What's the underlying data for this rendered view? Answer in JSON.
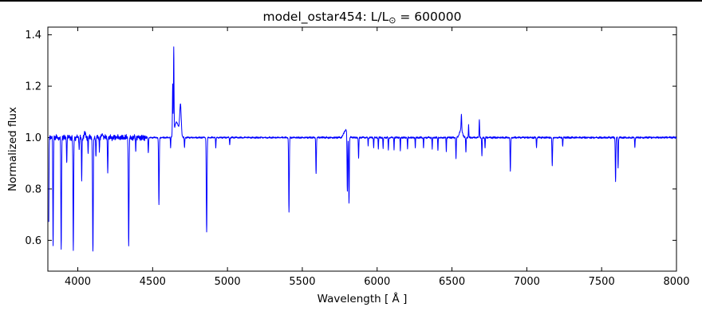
{
  "figure": {
    "background": "#ffffff"
  },
  "chart_data": {
    "type": "line",
    "title": "model_ostar454: L/L⊙ = 600000",
    "title_parts": {
      "prefix": "model_ostar454: L/L",
      "sub": "⊙",
      "suffix": " = 600000"
    },
    "xlabel": "Wavelength [ Å ]",
    "ylabel": "Normalized flux",
    "xlim": [
      3800,
      8000
    ],
    "ylim": [
      0.48,
      1.43
    ],
    "x_start": 3806,
    "sample_step": 1,
    "grid": false,
    "legend": "none",
    "line_color": "#0000ff",
    "frame_color": "#000000",
    "tick_direction": "in",
    "tick_length": 5,
    "xticks": [
      {
        "v": 4000,
        "label": "4000"
      },
      {
        "v": 4500,
        "label": "4500"
      },
      {
        "v": 5000,
        "label": "5000"
      },
      {
        "v": 5500,
        "label": "5500"
      },
      {
        "v": 6000,
        "label": "6000"
      },
      {
        "v": 6500,
        "label": "6500"
      },
      {
        "v": 7000,
        "label": "7000"
      },
      {
        "v": 7500,
        "label": "7500"
      },
      {
        "v": 8000,
        "label": "8000"
      }
    ],
    "yticks": [
      {
        "v": 0.6,
        "label": "0.6"
      },
      {
        "v": 0.8,
        "label": "0.8"
      },
      {
        "v": 1.0,
        "label": "1.0"
      },
      {
        "v": 1.2,
        "label": "1.2"
      },
      {
        "v": 1.4,
        "label": "1.4"
      }
    ],
    "continuum": 1.0,
    "features": [
      {
        "wl": 3805,
        "flux": 0.62,
        "w": 2.0
      },
      {
        "wl": 3835,
        "flux": 0.57,
        "w": 2.0
      },
      {
        "wl": 3889,
        "flux": 0.56,
        "w": 2.2
      },
      {
        "wl": 3926,
        "flux": 0.9,
        "w": 1.6
      },
      {
        "wl": 3970,
        "flux": 0.56,
        "w": 2.2
      },
      {
        "wl": 4009,
        "flux": 0.95,
        "w": 1.6
      },
      {
        "wl": 4026,
        "flux": 0.83,
        "w": 1.8
      },
      {
        "wl": 4047,
        "flux": 1.02,
        "w": 5.0
      },
      {
        "wl": 4069,
        "flux": 0.94,
        "w": 1.6
      },
      {
        "wl": 4101,
        "flux": 0.55,
        "w": 2.4
      },
      {
        "wl": 4121,
        "flux": 0.92,
        "w": 1.6
      },
      {
        "wl": 4144,
        "flux": 0.95,
        "w": 1.6
      },
      {
        "wl": 4165,
        "flux": 1.015,
        "w": 4.0
      },
      {
        "wl": 4200,
        "flux": 0.87,
        "w": 2.0
      },
      {
        "wl": 4340,
        "flux": 0.58,
        "w": 2.4
      },
      {
        "wl": 4387,
        "flux": 0.95,
        "w": 1.6
      },
      {
        "wl": 4471,
        "flux": 0.94,
        "w": 1.8
      },
      {
        "wl": 4542,
        "flux": 0.74,
        "w": 2.2
      },
      {
        "wl": 4620,
        "flux": 0.96,
        "w": 1.5
      },
      {
        "wl": 4634,
        "flux": 1.2,
        "w": 1.8
      },
      {
        "wl": 4641,
        "flux": 1.33,
        "w": 1.8
      },
      {
        "wl": 4660,
        "flux": 1.06,
        "w": 14.0
      },
      {
        "wl": 4686,
        "flux": 1.12,
        "w": 5.0
      },
      {
        "wl": 4713,
        "flux": 0.96,
        "w": 1.6
      },
      {
        "wl": 4861,
        "flux": 0.63,
        "w": 2.4
      },
      {
        "wl": 4922,
        "flux": 0.96,
        "w": 1.6
      },
      {
        "wl": 5015,
        "flux": 0.97,
        "w": 1.6
      },
      {
        "wl": 5411,
        "flux": 0.71,
        "w": 2.2
      },
      {
        "wl": 5592,
        "flux": 0.86,
        "w": 2.0
      },
      {
        "wl": 5790,
        "flux": 1.03,
        "w": 12.0
      },
      {
        "wl": 5801,
        "flux": 0.77,
        "w": 2.2
      },
      {
        "wl": 5812,
        "flux": 0.74,
        "w": 2.2
      },
      {
        "wl": 5876,
        "flux": 0.92,
        "w": 1.8
      },
      {
        "wl": 5940,
        "flux": 0.97,
        "w": 1.5
      },
      {
        "wl": 5977,
        "flux": 0.96,
        "w": 1.5
      },
      {
        "wl": 6008,
        "flux": 0.955,
        "w": 1.5
      },
      {
        "wl": 6040,
        "flux": 0.955,
        "w": 1.5
      },
      {
        "wl": 6075,
        "flux": 0.95,
        "w": 1.5
      },
      {
        "wl": 6113,
        "flux": 0.955,
        "w": 1.5
      },
      {
        "wl": 6155,
        "flux": 0.95,
        "w": 1.5
      },
      {
        "wl": 6203,
        "flux": 0.955,
        "w": 1.5
      },
      {
        "wl": 6255,
        "flux": 0.96,
        "w": 1.5
      },
      {
        "wl": 6310,
        "flux": 0.96,
        "w": 1.5
      },
      {
        "wl": 6368,
        "flux": 0.955,
        "w": 1.5
      },
      {
        "wl": 6406,
        "flux": 0.95,
        "w": 1.5
      },
      {
        "wl": 6462,
        "flux": 0.945,
        "w": 1.5
      },
      {
        "wl": 6527,
        "flux": 0.92,
        "w": 1.8
      },
      {
        "wl": 6560,
        "flux": 1.03,
        "w": 10.0
      },
      {
        "wl": 6563,
        "flux": 1.06,
        "w": 2.0
      },
      {
        "wl": 6593,
        "flux": 0.94,
        "w": 1.6
      },
      {
        "wl": 6611,
        "flux": 1.05,
        "w": 1.5
      },
      {
        "wl": 6683,
        "flux": 1.07,
        "w": 1.8
      },
      {
        "wl": 6700,
        "flux": 0.93,
        "w": 1.8
      },
      {
        "wl": 6721,
        "flux": 0.96,
        "w": 1.6
      },
      {
        "wl": 6890,
        "flux": 0.87,
        "w": 2.0
      },
      {
        "wl": 7065,
        "flux": 0.96,
        "w": 1.6
      },
      {
        "wl": 7170,
        "flux": 0.89,
        "w": 2.0
      },
      {
        "wl": 7240,
        "flux": 0.965,
        "w": 1.6
      },
      {
        "wl": 7593,
        "flux": 0.83,
        "w": 2.0
      },
      {
        "wl": 7610,
        "flux": 0.88,
        "w": 1.8
      },
      {
        "wl": 7722,
        "flux": 0.96,
        "w": 1.6
      }
    ],
    "noise_regions": [
      {
        "from": 3806,
        "to": 4460,
        "amp": 0.009
      },
      {
        "from": 4460,
        "to": 5550,
        "amp": 0.0025
      },
      {
        "from": 5550,
        "to": 8000,
        "amp": 0.003
      }
    ]
  }
}
